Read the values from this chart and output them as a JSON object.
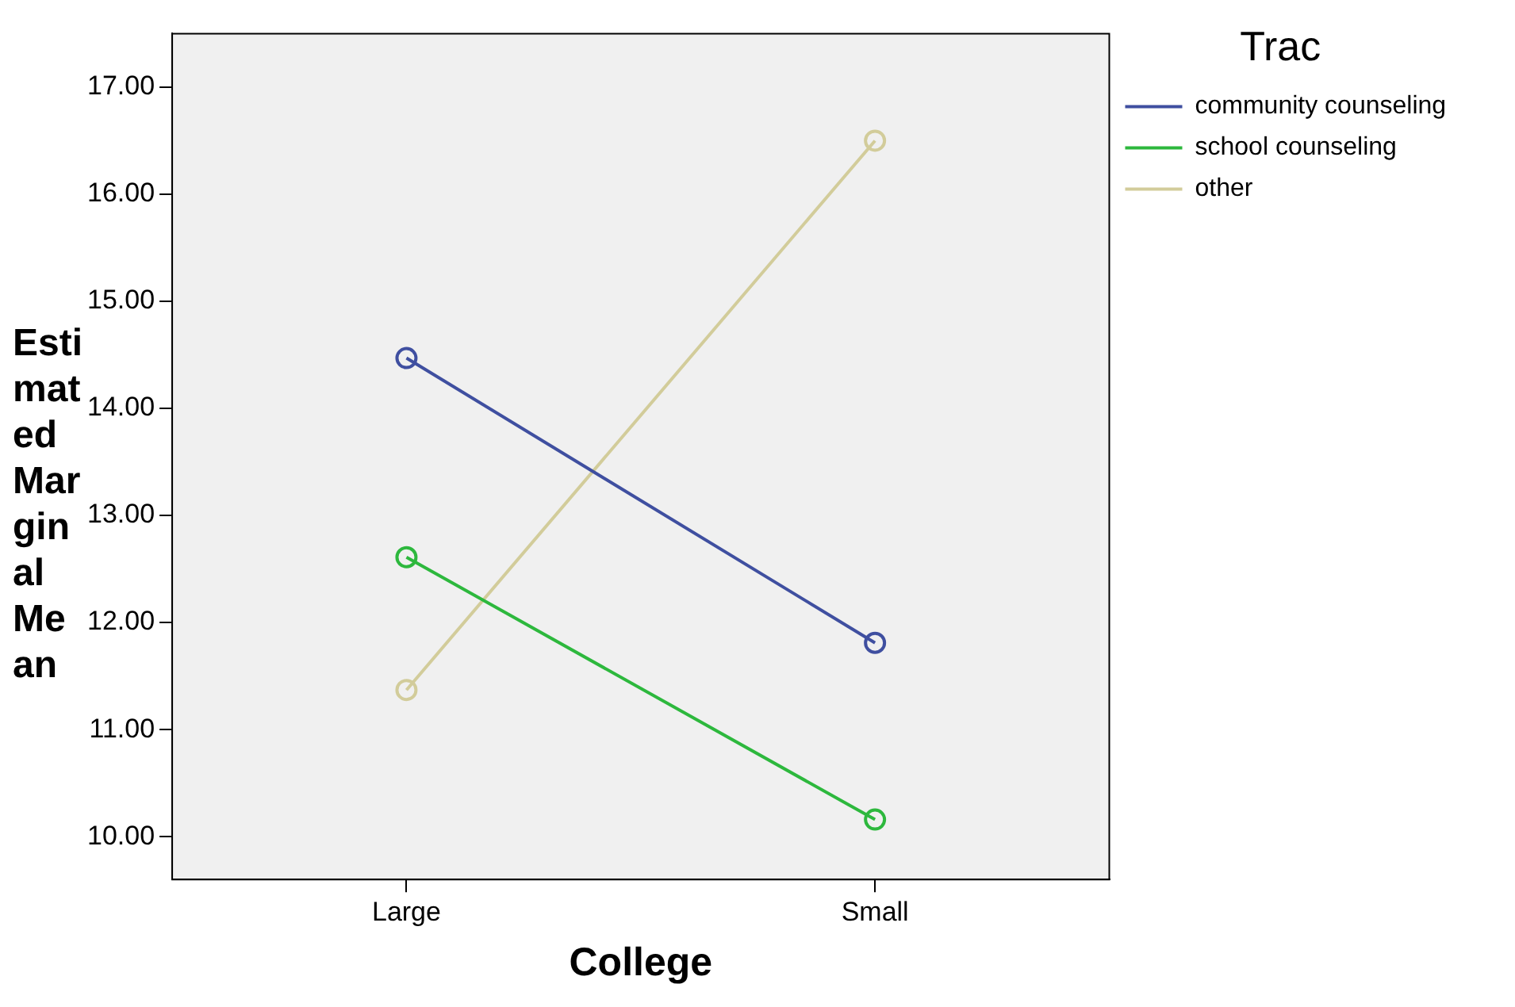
{
  "chart_data": {
    "type": "line",
    "xlabel": "College",
    "ylabel": "Estimated Marginal Mean",
    "legend_title": "Trac",
    "legend": "right",
    "marker": "circle",
    "line_style": "solid",
    "categories": [
      "Large",
      "Small"
    ],
    "series": [
      {
        "name": "community counseling",
        "color": "#3f4fa0",
        "values": [
          14.47,
          11.81
        ]
      },
      {
        "name": "school counseling",
        "color": "#2db83d",
        "values": [
          12.61,
          10.16
        ]
      },
      {
        "name": "other",
        "color": "#d2cc9a",
        "values": [
          11.37,
          16.5
        ]
      }
    ],
    "ylim": [
      9.6,
      17.5
    ],
    "yticks": [
      {
        "value": 10,
        "label": "10.00"
      },
      {
        "value": 11,
        "label": "11.00"
      },
      {
        "value": 12,
        "label": "12.00"
      },
      {
        "value": 13,
        "label": "13.00"
      },
      {
        "value": 14,
        "label": "14.00"
      },
      {
        "value": 15,
        "label": "15.00"
      },
      {
        "value": 16,
        "label": "16.00"
      },
      {
        "value": 17,
        "label": "17.00"
      }
    ]
  }
}
